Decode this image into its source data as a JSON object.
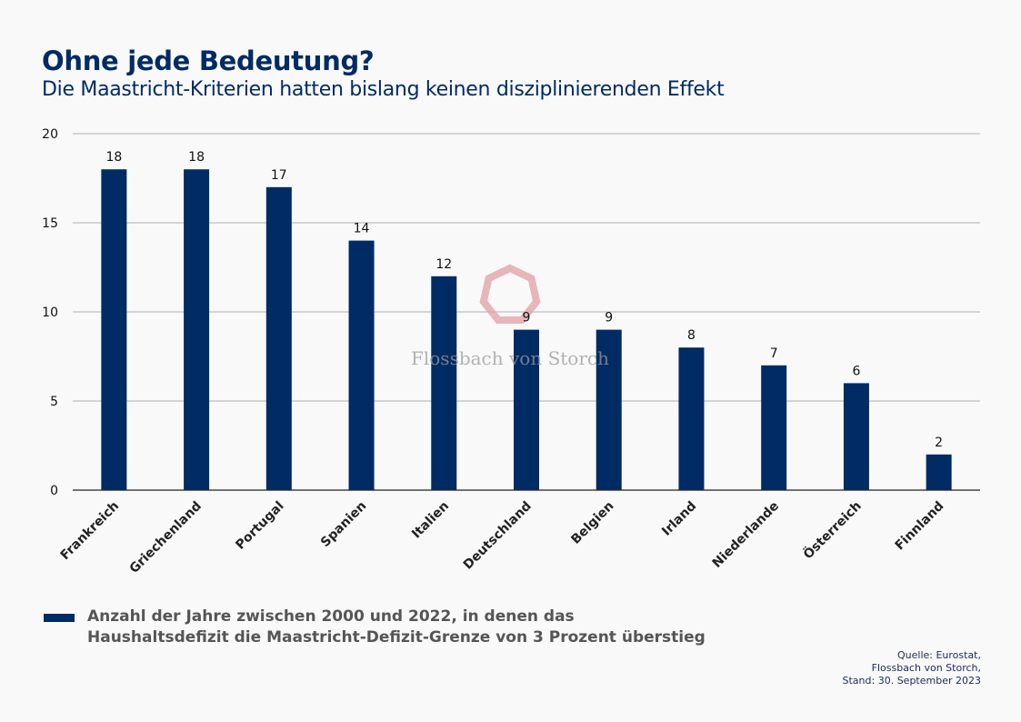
{
  "title": "Ohne jede Bedeutung?",
  "subtitle": "Die Maastricht-Kriterien hatten bislang keinen disziplinierenden Effekt",
  "watermark": "Flossbach von Storch",
  "source": [
    "Quelle: Eurostat,",
    "Flossbach von Storch,",
    "Stand: 30. September 2023"
  ],
  "chart_data": {
    "type": "bar",
    "categories": [
      "Frankreich",
      "Griechenland",
      "Portugal",
      "Spanien",
      "Italien",
      "Deutschland",
      "Belgien",
      "Irland",
      "Niederlande",
      "Österreich",
      "Finnland"
    ],
    "series": [
      {
        "name": "Anzahl der Jahre zwischen 2000 und 2022, in denen das Haushaltsdefizit die Maastricht-Defizit-Grenze von 3 Prozent überstieg",
        "values": [
          18,
          18,
          17,
          14,
          12,
          9,
          9,
          8,
          7,
          6,
          2
        ]
      }
    ],
    "ylim": [
      0,
      20
    ],
    "yticks": [
      0,
      5,
      10,
      15,
      20
    ],
    "grid": true,
    "legend": "bottom-left",
    "colors": {
      "bar": "#002b64",
      "grid": "#b0b0b0",
      "title": "#002b64"
    }
  }
}
